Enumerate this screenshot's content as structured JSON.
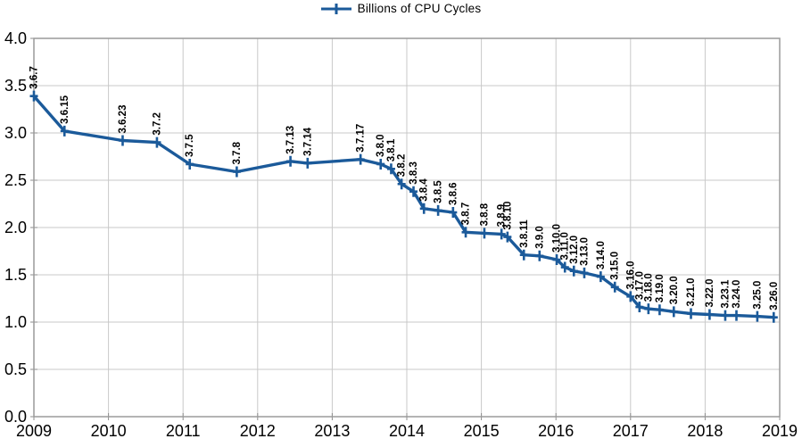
{
  "legend": {
    "label": "Billions of CPU Cycles"
  },
  "colors": {
    "line": "#1b5a9a",
    "grid": "#c9c9c9",
    "border": "#9a9a9a",
    "tick": "#8c8c8c",
    "text": "#000000"
  },
  "chart_data": {
    "type": "line",
    "title": "",
    "xlabel": "",
    "ylabel": "",
    "xlim": [
      2009,
      2019
    ],
    "ylim": [
      0.0,
      4.0
    ],
    "grid": true,
    "legend_position": "top-center",
    "marker": "plus",
    "point_labels_rotated": true,
    "x_tick_labels": [
      "2009",
      "2010",
      "2011",
      "2012",
      "2013",
      "2014",
      "2015",
      "2016",
      "2017",
      "2018",
      "2019"
    ],
    "y_tick_labels": [
      "0.0",
      "0.5",
      "1.0",
      "1.5",
      "2.0",
      "2.5",
      "3.0",
      "3.5",
      "4.0"
    ],
    "series": [
      {
        "name": "Billions of CPU Cycles",
        "points": [
          {
            "label": "3.6.7",
            "x": 2009.0,
            "y": 3.39
          },
          {
            "label": "3.6.15",
            "x": 2009.41,
            "y": 3.02
          },
          {
            "label": "3.6.23",
            "x": 2010.19,
            "y": 2.92
          },
          {
            "label": "3.7.2",
            "x": 2010.65,
            "y": 2.9
          },
          {
            "label": "3.7.5",
            "x": 2011.09,
            "y": 2.67
          },
          {
            "label": "3.7.8",
            "x": 2011.72,
            "y": 2.59
          },
          {
            "label": "3.7.13",
            "x": 2012.44,
            "y": 2.7
          },
          {
            "label": "3.7.14",
            "x": 2012.67,
            "y": 2.68
          },
          {
            "label": "3.7.17",
            "x": 2013.38,
            "y": 2.72
          },
          {
            "label": "3.8.0",
            "x": 2013.65,
            "y": 2.67
          },
          {
            "label": "3.8.1",
            "x": 2013.79,
            "y": 2.62
          },
          {
            "label": "3.8.2",
            "x": 2013.93,
            "y": 2.46
          },
          {
            "label": "3.8.3",
            "x": 2014.09,
            "y": 2.38
          },
          {
            "label": "3.8.4",
            "x": 2014.23,
            "y": 2.2
          },
          {
            "label": "3.8.5",
            "x": 2014.42,
            "y": 2.18
          },
          {
            "label": "3.8.6",
            "x": 2014.62,
            "y": 2.16
          },
          {
            "label": "3.8.7",
            "x": 2014.79,
            "y": 1.95
          },
          {
            "label": "3.8.8",
            "x": 2015.04,
            "y": 1.94
          },
          {
            "label": "3.8.9",
            "x": 2015.27,
            "y": 1.93
          },
          {
            "label": "3.8.10",
            "x": 2015.35,
            "y": 1.9
          },
          {
            "label": "3.8.11",
            "x": 2015.57,
            "y": 1.71
          },
          {
            "label": "3.9.0",
            "x": 2015.78,
            "y": 1.7
          },
          {
            "label": "3.10.0",
            "x": 2016.01,
            "y": 1.66
          },
          {
            "label": "3.11.0",
            "x": 2016.12,
            "y": 1.58
          },
          {
            "label": "3.12.0",
            "x": 2016.24,
            "y": 1.54
          },
          {
            "label": "3.13.0",
            "x": 2016.38,
            "y": 1.52
          },
          {
            "label": "3.14.0",
            "x": 2016.6,
            "y": 1.48
          },
          {
            "label": "3.15.0",
            "x": 2016.79,
            "y": 1.37
          },
          {
            "label": "3.16.0",
            "x": 2017.0,
            "y": 1.27
          },
          {
            "label": "3.17.0",
            "x": 2017.12,
            "y": 1.16
          },
          {
            "label": "3.18.0",
            "x": 2017.24,
            "y": 1.14
          },
          {
            "label": "3.19.0",
            "x": 2017.39,
            "y": 1.13
          },
          {
            "label": "3.20.0",
            "x": 2017.58,
            "y": 1.11
          },
          {
            "label": "3.21.0",
            "x": 2017.81,
            "y": 1.09
          },
          {
            "label": "3.22.0",
            "x": 2018.06,
            "y": 1.08
          },
          {
            "label": "3.23.1",
            "x": 2018.27,
            "y": 1.07
          },
          {
            "label": "3.24.0",
            "x": 2018.42,
            "y": 1.07
          },
          {
            "label": "3.25.0",
            "x": 2018.7,
            "y": 1.06
          },
          {
            "label": "3.26.0",
            "x": 2018.92,
            "y": 1.05
          }
        ]
      }
    ]
  }
}
